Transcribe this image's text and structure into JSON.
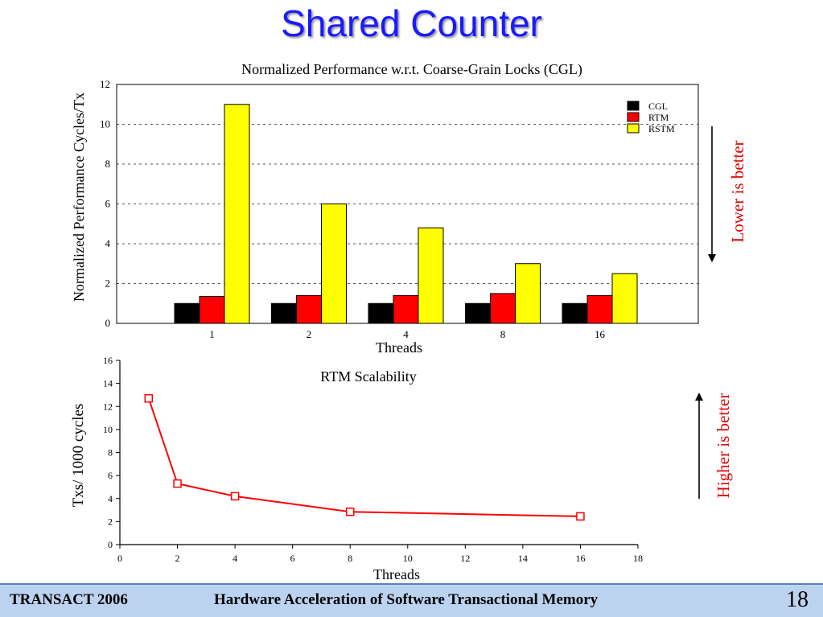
{
  "slide": {
    "title": "Shared Counter",
    "footer_left": "TRANSACT 2006",
    "footer_center": "Hardware Acceleration of Software Transactional Memory",
    "page_number": "18"
  },
  "annotations": {
    "lower_better": "Lower is better",
    "higher_better": "Higher is better"
  },
  "colors": {
    "title": "#1a1aff",
    "CGL": "#000000",
    "RTM": "#ff0000",
    "RSTM": "#ffff00",
    "annotation": "#e00000",
    "footer_bg": "#bcd3f0"
  },
  "chart_data": [
    {
      "type": "bar",
      "title": "Normalized Performance w.r.t. Coarse-Grain Locks (CGL)",
      "xlabel": "Threads",
      "ylabel": "Normalized Performance Cycles/Tx",
      "categories": [
        "1",
        "2",
        "4",
        "8",
        "16"
      ],
      "series": [
        {
          "name": "CGL",
          "values": [
            1,
            1,
            1,
            1,
            1
          ]
        },
        {
          "name": "RTM",
          "values": [
            1.35,
            1.4,
            1.4,
            1.5,
            1.4
          ]
        },
        {
          "name": "RSTM",
          "values": [
            11,
            6,
            4.8,
            3,
            2.5
          ]
        }
      ],
      "ylim": [
        0,
        12
      ],
      "yticks": [
        0,
        2,
        4,
        6,
        8,
        10,
        12
      ],
      "grid": "horizontal-dashed",
      "legend": "top-right"
    },
    {
      "type": "line",
      "title": "RTM Scalability",
      "xlabel": "Threads",
      "ylabel": "Txs/ 1000 cycles",
      "x": [
        1,
        2,
        4,
        8,
        16
      ],
      "y": [
        12.7,
        5.3,
        4.2,
        2.85,
        2.45
      ],
      "xlim": [
        0,
        18
      ],
      "ylim": [
        0,
        16
      ],
      "xticks": [
        0,
        2,
        4,
        6,
        8,
        10,
        12,
        14,
        16,
        18
      ],
      "yticks": [
        0,
        2,
        4,
        6,
        8,
        10,
        12,
        14,
        16
      ],
      "marker": "open-square",
      "grid": "none"
    }
  ]
}
